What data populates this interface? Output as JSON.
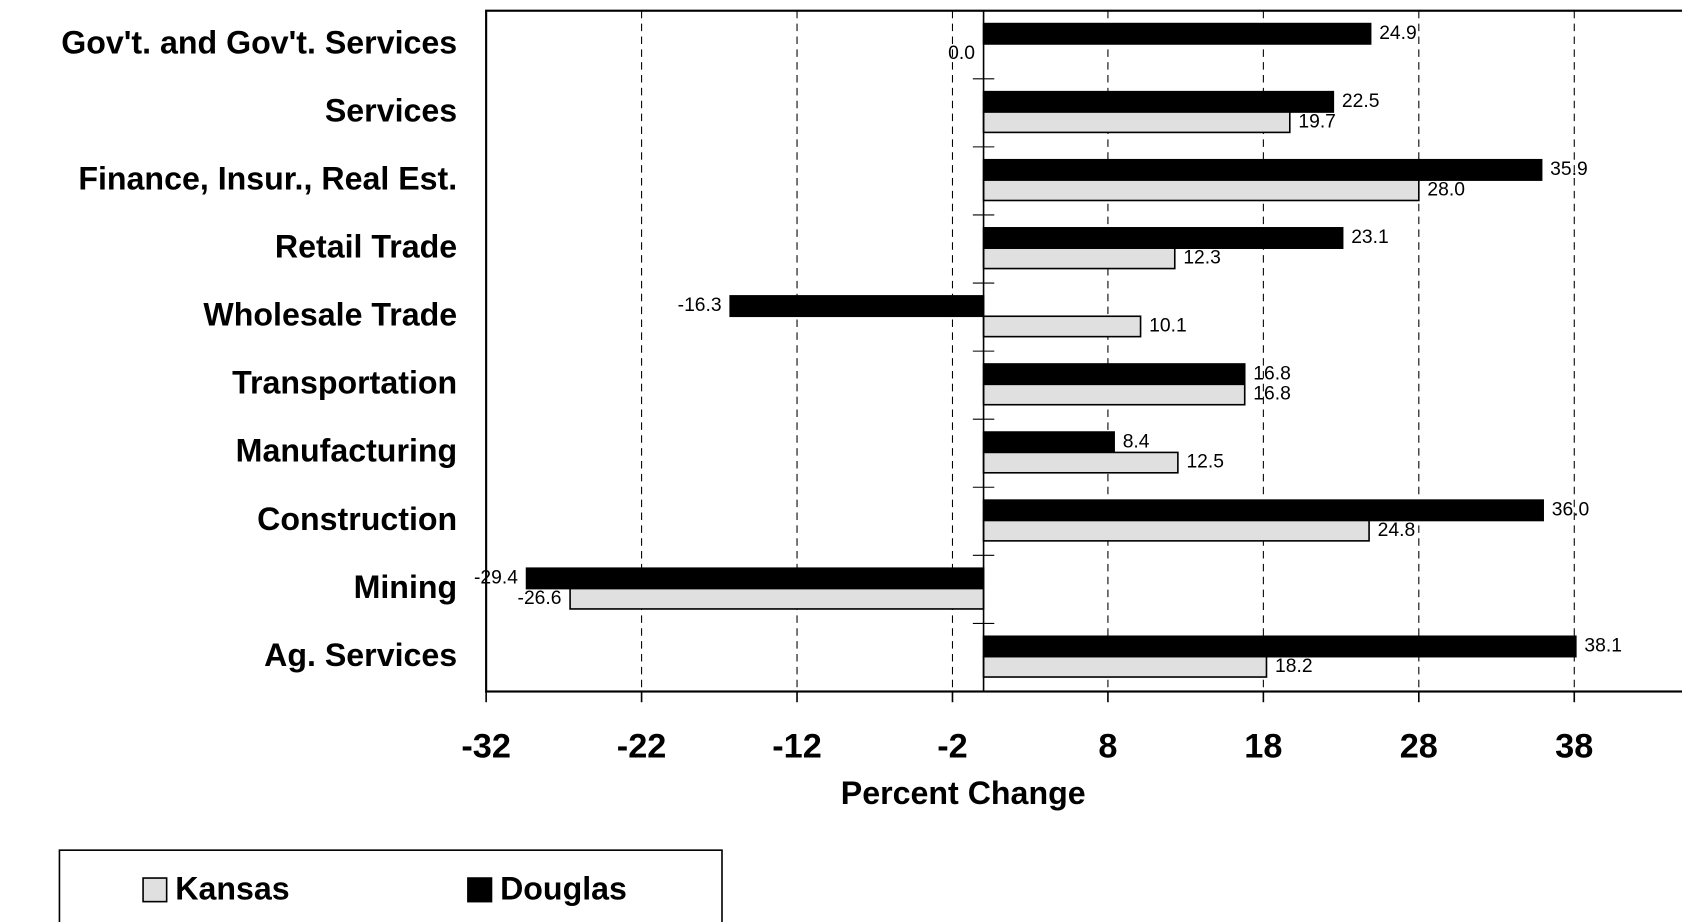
{
  "chart_data": {
    "type": "hbar",
    "categories": [
      "Gov't. and Gov't. Services",
      "Services",
      "Finance, Insur., Real Est.",
      "Retail Trade",
      "Wholesale Trade",
      "Transportation",
      "Manufacturing",
      "Construction",
      "Mining",
      "Ag. Services"
    ],
    "series": [
      {
        "name": "Kansas",
        "color": "#e0e0e0",
        "values": [
          0.0,
          19.7,
          28.0,
          12.3,
          10.1,
          16.8,
          12.5,
          24.8,
          -26.6,
          18.2
        ],
        "value_labels": [
          "0.0",
          "19.7",
          "28.0",
          "12.3",
          "10.1",
          "16.8",
          "12.5",
          "24.8",
          "-26.6",
          "18.2"
        ]
      },
      {
        "name": "Douglas",
        "color": "#000000",
        "values": [
          24.9,
          22.5,
          35.9,
          23.1,
          -16.3,
          16.8,
          8.4,
          36.0,
          -29.4,
          38.1
        ],
        "value_labels": [
          "24.9",
          "22.5",
          "35.9",
          "23.1",
          "-16.3",
          "16.8",
          "8.4",
          "36.0",
          "-29.4",
          "38.1"
        ]
      }
    ],
    "x_label": "Percent Change",
    "xlim": [
      -32,
      45
    ],
    "xticks": [
      -32,
      -22,
      -12,
      -2,
      8,
      18,
      28,
      38
    ],
    "grid": true,
    "legend": "bottom-left"
  }
}
